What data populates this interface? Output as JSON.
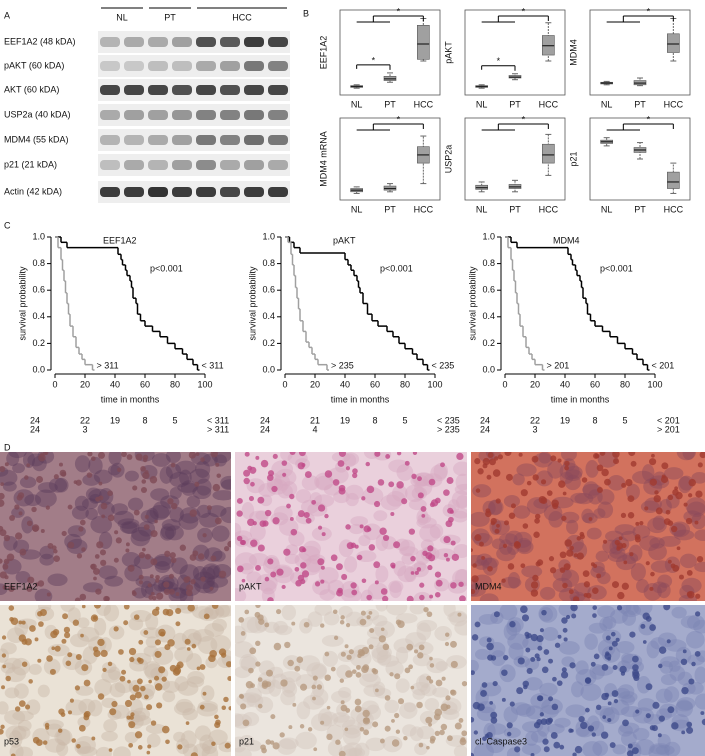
{
  "panel_labels": [
    "A",
    "B",
    "C",
    "D"
  ],
  "blot": {
    "group_labels": [
      "NL",
      "PT",
      "HCC"
    ],
    "rows": [
      "EEF1A2 (48 kDA)",
      "pAKT (60 kDA)",
      "AKT (60 kDA)",
      "USP2a (40 kDA)",
      "MDM4 (55 kDA)",
      "p21 (21 kDA)",
      "Actin (42 kDA)"
    ]
  },
  "chart_data": [
    {
      "type": "box",
      "y_label": "EEF1A2",
      "categories": [
        "NL",
        "PT",
        "HCC"
      ],
      "ylim": [
        0,
        100
      ],
      "boxes": [
        {
          "min": 8,
          "q1": 9,
          "median": 10,
          "q3": 11,
          "max": 12
        },
        {
          "min": 15,
          "q1": 17,
          "median": 19,
          "q3": 22,
          "max": 26
        },
        {
          "min": 40,
          "q1": 42,
          "median": 60,
          "q3": 82,
          "max": 90
        }
      ],
      "annotations": [
        {
          "text": "*",
          "from": 0,
          "to": 1
        },
        {
          "text": "*",
          "from": 0,
          "to": 2
        }
      ]
    },
    {
      "type": "box",
      "y_label": "pAKT",
      "categories": [
        "NL",
        "PT",
        "HCC"
      ],
      "ylim": [
        0,
        100
      ],
      "boxes": [
        {
          "min": 8,
          "q1": 9,
          "median": 10,
          "q3": 11,
          "max": 12
        },
        {
          "min": 18,
          "q1": 20,
          "median": 21,
          "q3": 23,
          "max": 25
        },
        {
          "min": 40,
          "q1": 47,
          "median": 58,
          "q3": 70,
          "max": 85
        }
      ],
      "annotations": [
        {
          "text": "*",
          "from": 0,
          "to": 1
        },
        {
          "text": "*",
          "from": 0,
          "to": 2
        }
      ]
    },
    {
      "type": "box",
      "y_label": "MDM4",
      "categories": [
        "NL",
        "PT",
        "HCC"
      ],
      "ylim": [
        0,
        100
      ],
      "boxes": [
        {
          "min": 12,
          "q1": 13,
          "median": 14,
          "q3": 15,
          "max": 16
        },
        {
          "min": 11,
          "q1": 12,
          "median": 14,
          "q3": 17,
          "max": 20
        },
        {
          "min": 40,
          "q1": 50,
          "median": 60,
          "q3": 72,
          "max": 90
        }
      ],
      "annotations": [
        {
          "text": "*",
          "from": 0,
          "to": 2
        }
      ]
    },
    {
      "type": "box",
      "y_label": "MDM4 mRNA",
      "categories": [
        "NL",
        "PT",
        "HCC"
      ],
      "ylim": [
        0,
        100
      ],
      "boxes": [
        {
          "min": 8,
          "q1": 10,
          "median": 12,
          "q3": 14,
          "max": 16
        },
        {
          "min": 10,
          "q1": 12,
          "median": 14,
          "q3": 17,
          "max": 20
        },
        {
          "min": 20,
          "q1": 45,
          "median": 55,
          "q3": 65,
          "max": 78
        }
      ],
      "annotations": [
        {
          "text": "*",
          "from": 0,
          "to": 2
        }
      ]
    },
    {
      "type": "box",
      "y_label": "USP2a",
      "categories": [
        "NL",
        "PT",
        "HCC"
      ],
      "ylim": [
        0,
        100
      ],
      "boxes": [
        {
          "min": 10,
          "q1": 13,
          "median": 15,
          "q3": 18,
          "max": 22
        },
        {
          "min": 10,
          "q1": 14,
          "median": 16,
          "q3": 19,
          "max": 24
        },
        {
          "min": 30,
          "q1": 45,
          "median": 55,
          "q3": 68,
          "max": 80
        }
      ],
      "annotations": [
        {
          "text": "*",
          "from": 0,
          "to": 2
        }
      ]
    },
    {
      "type": "box",
      "y_label": "p21",
      "categories": [
        "NL",
        "PT",
        "HCC"
      ],
      "ylim": [
        0,
        100
      ],
      "boxes": [
        {
          "min": 66,
          "q1": 69,
          "median": 71,
          "q3": 73,
          "max": 76
        },
        {
          "min": 50,
          "q1": 58,
          "median": 61,
          "q3": 64,
          "max": 70
        },
        {
          "min": 8,
          "q1": 14,
          "median": 22,
          "q3": 34,
          "max": 45
        }
      ],
      "annotations": [
        {
          "text": "*",
          "from": 0,
          "to": 2
        }
      ]
    },
    {
      "type": "step",
      "title": "EEF1A2",
      "p_text": "p<0.001",
      "y_label": "survival probability",
      "x_label": "time in months",
      "xlim": [
        0,
        100
      ],
      "xticks": [
        0,
        20,
        40,
        60,
        80,
        100
      ],
      "ylim": [
        0,
        1
      ],
      "yticks": [
        {
          "value": 0,
          "label": "0.0"
        },
        {
          "value": 0.2,
          "label": "0.2"
        },
        {
          "value": 0.4,
          "label": "0.4"
        },
        {
          "value": 0.6,
          "label": "0.6"
        },
        {
          "value": 0.8,
          "label": "0.8"
        },
        {
          "value": 1,
          "label": "1.0"
        }
      ],
      "series": [
        {
          "name": "< 311",
          "color": "#000000",
          "x": [
            0,
            4,
            8,
            42,
            44,
            45,
            47,
            48,
            50,
            51,
            52,
            54,
            55,
            57,
            60,
            65,
            70,
            75,
            80,
            85,
            88,
            92,
            95
          ],
          "values": [
            1,
            0.96,
            0.92,
            0.87,
            0.83,
            0.79,
            0.75,
            0.71,
            0.67,
            0.62,
            0.54,
            0.5,
            0.42,
            0.37,
            0.33,
            0.29,
            0.25,
            0.2,
            0.16,
            0.12,
            0.08,
            0.04,
            0
          ]
        },
        {
          "name": "> 311",
          "color": "#a0a0a0",
          "x": [
            0,
            2,
            4,
            5,
            6,
            7,
            8,
            9,
            10,
            12,
            14,
            16,
            18,
            20,
            25
          ],
          "values": [
            1,
            0.92,
            0.83,
            0.75,
            0.67,
            0.58,
            0.5,
            0.42,
            0.33,
            0.25,
            0.17,
            0.12,
            0.08,
            0.04,
            0
          ]
        }
      ],
      "risk_table": [
        [
          24,
          22,
          19,
          8,
          5
        ],
        [
          24,
          3
        ]
      ]
    },
    {
      "type": "step",
      "title": "pAKT",
      "p_text": "p<0.001",
      "y_label": "survival probability",
      "x_label": "time in months",
      "xlim": [
        0,
        100
      ],
      "xticks": [
        0,
        20,
        40,
        60,
        80,
        100
      ],
      "ylim": [
        0,
        1
      ],
      "yticks": [
        {
          "value": 0,
          "label": "0.0"
        },
        {
          "value": 0.2,
          "label": "0.2"
        },
        {
          "value": 0.4,
          "label": "0.4"
        },
        {
          "value": 0.6,
          "label": "0.6"
        },
        {
          "value": 0.8,
          "label": "0.8"
        },
        {
          "value": 1,
          "label": "1.0"
        }
      ],
      "series": [
        {
          "name": "< 235",
          "color": "#000000",
          "x": [
            0,
            3,
            6,
            10,
            40,
            42,
            44,
            46,
            48,
            49,
            50,
            52,
            55,
            58,
            62,
            68,
            72,
            76,
            80,
            85,
            88,
            92,
            95
          ],
          "values": [
            1,
            0.96,
            0.92,
            0.88,
            0.83,
            0.79,
            0.75,
            0.71,
            0.67,
            0.62,
            0.58,
            0.5,
            0.42,
            0.37,
            0.33,
            0.29,
            0.25,
            0.2,
            0.16,
            0.12,
            0.08,
            0.04,
            0
          ]
        },
        {
          "name": "> 235",
          "color": "#a0a0a0",
          "x": [
            0,
            2,
            4,
            5,
            6,
            7,
            8,
            9,
            10,
            12,
            14,
            16,
            18,
            20,
            22,
            28
          ],
          "values": [
            1,
            0.96,
            0.87,
            0.79,
            0.71,
            0.62,
            0.54,
            0.46,
            0.37,
            0.29,
            0.21,
            0.17,
            0.12,
            0.08,
            0.04,
            0
          ]
        }
      ],
      "risk_table": [
        [
          24,
          21,
          19,
          8,
          5
        ],
        [
          24,
          4
        ]
      ]
    },
    {
      "type": "step",
      "title": "MDM4",
      "p_text": "p<0.001",
      "y_label": "survival probability",
      "x_label": "time in months",
      "xlim": [
        0,
        100
      ],
      "xticks": [
        0,
        20,
        40,
        60,
        80,
        100
      ],
      "ylim": [
        0,
        1
      ],
      "yticks": [
        {
          "value": 0,
          "label": "0.0"
        },
        {
          "value": 0.2,
          "label": "0.2"
        },
        {
          "value": 0.4,
          "label": "0.4"
        },
        {
          "value": 0.6,
          "label": "0.6"
        },
        {
          "value": 0.8,
          "label": "0.8"
        },
        {
          "value": 1,
          "label": "1.0"
        }
      ],
      "series": [
        {
          "name": "< 201",
          "color": "#000000",
          "x": [
            0,
            4,
            8,
            42,
            44,
            45,
            47,
            48,
            50,
            51,
            52,
            54,
            55,
            57,
            60,
            65,
            70,
            75,
            80,
            85,
            88,
            92,
            95
          ],
          "values": [
            1,
            0.96,
            0.92,
            0.87,
            0.83,
            0.79,
            0.75,
            0.71,
            0.67,
            0.62,
            0.54,
            0.5,
            0.42,
            0.37,
            0.33,
            0.29,
            0.25,
            0.2,
            0.16,
            0.12,
            0.08,
            0.04,
            0
          ]
        },
        {
          "name": "> 201",
          "color": "#a0a0a0",
          "x": [
            0,
            2,
            4,
            5,
            6,
            7,
            8,
            9,
            10,
            12,
            14,
            16,
            18,
            20,
            25
          ],
          "values": [
            1,
            0.92,
            0.83,
            0.75,
            0.67,
            0.58,
            0.5,
            0.42,
            0.33,
            0.25,
            0.17,
            0.12,
            0.08,
            0.04,
            0
          ]
        }
      ],
      "risk_table": [
        [
          24,
          22,
          19,
          8,
          5
        ],
        [
          24,
          3
        ]
      ]
    }
  ],
  "ihc": {
    "labels": [
      "EEF1A2",
      "pAKT",
      "MDM4",
      "p53",
      "p21",
      "cl. Caspase3"
    ]
  }
}
